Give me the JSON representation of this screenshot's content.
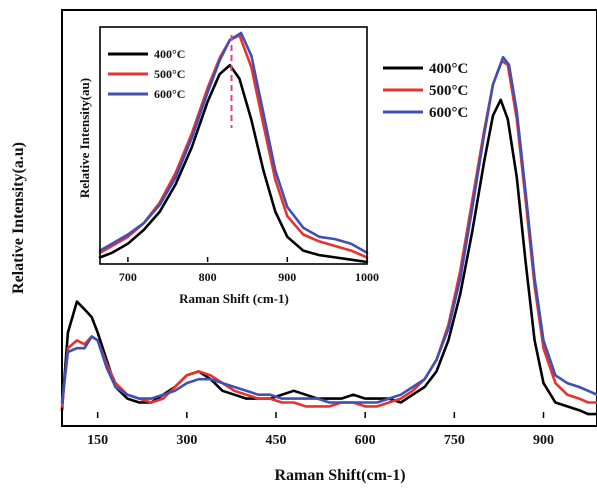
{
  "chart_data": [
    {
      "type": "line",
      "xlabel": "Raman Shift(cm-1)",
      "ylabel": "Relative Intensity(a.u)",
      "xlim": [
        90,
        990
      ],
      "ylim": [
        0,
        1.0
      ],
      "x_ticks": [
        "150",
        "300",
        "450",
        "600",
        "750",
        "900"
      ],
      "x_tick_values": [
        150,
        300,
        450,
        600,
        750,
        900
      ],
      "legend_position": "top-right",
      "y_tick_labels": "none",
      "series": [
        {
          "name": "400°C",
          "color": "#000000",
          "points": [
            [
              90,
              0.02
            ],
            [
              100,
              0.22
            ],
            [
              115,
              0.3
            ],
            [
              128,
              0.28
            ],
            [
              140,
              0.26
            ],
            [
              150,
              0.22
            ],
            [
              165,
              0.15
            ],
            [
              180,
              0.08
            ],
            [
              200,
              0.05
            ],
            [
              220,
              0.04
            ],
            [
              240,
              0.04
            ],
            [
              260,
              0.06
            ],
            [
              280,
              0.08
            ],
            [
              300,
              0.11
            ],
            [
              320,
              0.12
            ],
            [
              340,
              0.1
            ],
            [
              360,
              0.07
            ],
            [
              380,
              0.06
            ],
            [
              400,
              0.05
            ],
            [
              420,
              0.05
            ],
            [
              440,
              0.05
            ],
            [
              460,
              0.06
            ],
            [
              480,
              0.07
            ],
            [
              500,
              0.06
            ],
            [
              520,
              0.05
            ],
            [
              540,
              0.05
            ],
            [
              560,
              0.05
            ],
            [
              580,
              0.06
            ],
            [
              600,
              0.05
            ],
            [
              620,
              0.05
            ],
            [
              640,
              0.05
            ],
            [
              660,
              0.04
            ],
            [
              680,
              0.06
            ],
            [
              700,
              0.08
            ],
            [
              720,
              0.12
            ],
            [
              740,
              0.2
            ],
            [
              760,
              0.32
            ],
            [
              780,
              0.48
            ],
            [
              800,
              0.66
            ],
            [
              815,
              0.78
            ],
            [
              828,
              0.82
            ],
            [
              840,
              0.77
            ],
            [
              855,
              0.62
            ],
            [
              870,
              0.4
            ],
            [
              885,
              0.2
            ],
            [
              900,
              0.09
            ],
            [
              920,
              0.04
            ],
            [
              940,
              0.03
            ],
            [
              960,
              0.02
            ],
            [
              975,
              0.01
            ],
            [
              990,
              0.01
            ]
          ]
        },
        {
          "name": "500°C",
          "color": "#e8322e",
          "points": [
            [
              90,
              0.03
            ],
            [
              100,
              0.18
            ],
            [
              115,
              0.2
            ],
            [
              128,
              0.19
            ],
            [
              140,
              0.21
            ],
            [
              150,
              0.2
            ],
            [
              165,
              0.14
            ],
            [
              180,
              0.09
            ],
            [
              200,
              0.06
            ],
            [
              220,
              0.05
            ],
            [
              240,
              0.04
            ],
            [
              260,
              0.05
            ],
            [
              280,
              0.08
            ],
            [
              300,
              0.11
            ],
            [
              320,
              0.12
            ],
            [
              340,
              0.11
            ],
            [
              360,
              0.09
            ],
            [
              380,
              0.07
            ],
            [
              400,
              0.06
            ],
            [
              420,
              0.05
            ],
            [
              440,
              0.05
            ],
            [
              460,
              0.04
            ],
            [
              480,
              0.04
            ],
            [
              500,
              0.03
            ],
            [
              520,
              0.03
            ],
            [
              540,
              0.03
            ],
            [
              560,
              0.04
            ],
            [
              580,
              0.04
            ],
            [
              600,
              0.03
            ],
            [
              620,
              0.03
            ],
            [
              640,
              0.04
            ],
            [
              660,
              0.05
            ],
            [
              680,
              0.07
            ],
            [
              700,
              0.1
            ],
            [
              720,
              0.15
            ],
            [
              740,
              0.24
            ],
            [
              760,
              0.38
            ],
            [
              780,
              0.56
            ],
            [
              800,
              0.74
            ],
            [
              815,
              0.86
            ],
            [
              830,
              0.92
            ],
            [
              840,
              0.91
            ],
            [
              855,
              0.77
            ],
            [
              870,
              0.56
            ],
            [
              885,
              0.34
            ],
            [
              900,
              0.18
            ],
            [
              920,
              0.09
            ],
            [
              940,
              0.06
            ],
            [
              960,
              0.05
            ],
            [
              975,
              0.04
            ],
            [
              990,
              0.04
            ]
          ]
        },
        {
          "name": "600°C",
          "color": "#3f51b5",
          "points": [
            [
              90,
              0.04
            ],
            [
              100,
              0.17
            ],
            [
              115,
              0.18
            ],
            [
              128,
              0.18
            ],
            [
              140,
              0.21
            ],
            [
              150,
              0.2
            ],
            [
              165,
              0.13
            ],
            [
              180,
              0.08
            ],
            [
              200,
              0.06
            ],
            [
              220,
              0.05
            ],
            [
              240,
              0.05
            ],
            [
              260,
              0.06
            ],
            [
              280,
              0.07
            ],
            [
              300,
              0.09
            ],
            [
              320,
              0.1
            ],
            [
              340,
              0.1
            ],
            [
              360,
              0.09
            ],
            [
              380,
              0.08
            ],
            [
              400,
              0.07
            ],
            [
              420,
              0.06
            ],
            [
              440,
              0.06
            ],
            [
              460,
              0.05
            ],
            [
              480,
              0.05
            ],
            [
              500,
              0.05
            ],
            [
              520,
              0.05
            ],
            [
              540,
              0.04
            ],
            [
              560,
              0.04
            ],
            [
              580,
              0.04
            ],
            [
              600,
              0.04
            ],
            [
              620,
              0.04
            ],
            [
              640,
              0.05
            ],
            [
              660,
              0.06
            ],
            [
              680,
              0.08
            ],
            [
              700,
              0.1
            ],
            [
              720,
              0.15
            ],
            [
              740,
              0.23
            ],
            [
              760,
              0.36
            ],
            [
              780,
              0.54
            ],
            [
              800,
              0.73
            ],
            [
              815,
              0.86
            ],
            [
              832,
              0.93
            ],
            [
              842,
              0.91
            ],
            [
              855,
              0.79
            ],
            [
              870,
              0.58
            ],
            [
              885,
              0.36
            ],
            [
              900,
              0.2
            ],
            [
              920,
              0.11
            ],
            [
              940,
              0.09
            ],
            [
              960,
              0.08
            ],
            [
              975,
              0.07
            ],
            [
              990,
              0.06
            ]
          ]
        }
      ]
    },
    {
      "type": "line",
      "xlabel": "Raman Shift (cm-1)",
      "ylabel": "Relative Intensity(au)",
      "xlim": [
        665,
        1000
      ],
      "ylim": [
        0,
        1.0
      ],
      "x_ticks": [
        "700",
        "800",
        "900",
        "1000"
      ],
      "x_tick_values": [
        700,
        800,
        900,
        1000
      ],
      "legend_position": "top-left",
      "reference_line": {
        "x": 830,
        "style": "dashed",
        "color": "#e0408f"
      },
      "series": [
        {
          "name": "400°C",
          "color": "#000000",
          "points": [
            [
              665,
              0.02
            ],
            [
              680,
              0.04
            ],
            [
              700,
              0.08
            ],
            [
              720,
              0.14
            ],
            [
              740,
              0.22
            ],
            [
              760,
              0.34
            ],
            [
              780,
              0.5
            ],
            [
              800,
              0.7
            ],
            [
              815,
              0.82
            ],
            [
              828,
              0.86
            ],
            [
              840,
              0.8
            ],
            [
              855,
              0.62
            ],
            [
              870,
              0.4
            ],
            [
              885,
              0.22
            ],
            [
              900,
              0.11
            ],
            [
              920,
              0.05
            ],
            [
              940,
              0.03
            ],
            [
              960,
              0.02
            ],
            [
              980,
              0.01
            ],
            [
              1000,
              0.0
            ]
          ]
        },
        {
          "name": "500°C",
          "color": "#e8322e",
          "points": [
            [
              665,
              0.04
            ],
            [
              680,
              0.07
            ],
            [
              700,
              0.11
            ],
            [
              720,
              0.17
            ],
            [
              740,
              0.26
            ],
            [
              760,
              0.39
            ],
            [
              780,
              0.56
            ],
            [
              800,
              0.76
            ],
            [
              815,
              0.89
            ],
            [
              828,
              0.97
            ],
            [
              840,
              0.99
            ],
            [
              855,
              0.85
            ],
            [
              870,
              0.6
            ],
            [
              885,
              0.36
            ],
            [
              900,
              0.2
            ],
            [
              920,
              0.12
            ],
            [
              940,
              0.09
            ],
            [
              960,
              0.07
            ],
            [
              980,
              0.05
            ],
            [
              1000,
              0.02
            ]
          ]
        },
        {
          "name": "600°C",
          "color": "#3f51b5",
          "points": [
            [
              665,
              0.05
            ],
            [
              680,
              0.08
            ],
            [
              700,
              0.12
            ],
            [
              720,
              0.17
            ],
            [
              740,
              0.25
            ],
            [
              760,
              0.37
            ],
            [
              780,
              0.54
            ],
            [
              800,
              0.74
            ],
            [
              815,
              0.88
            ],
            [
              828,
              0.97
            ],
            [
              842,
              1.0
            ],
            [
              855,
              0.9
            ],
            [
              870,
              0.65
            ],
            [
              885,
              0.4
            ],
            [
              900,
              0.24
            ],
            [
              920,
              0.15
            ],
            [
              940,
              0.11
            ],
            [
              960,
              0.1
            ],
            [
              980,
              0.08
            ],
            [
              1000,
              0.04
            ]
          ]
        }
      ]
    }
  ]
}
